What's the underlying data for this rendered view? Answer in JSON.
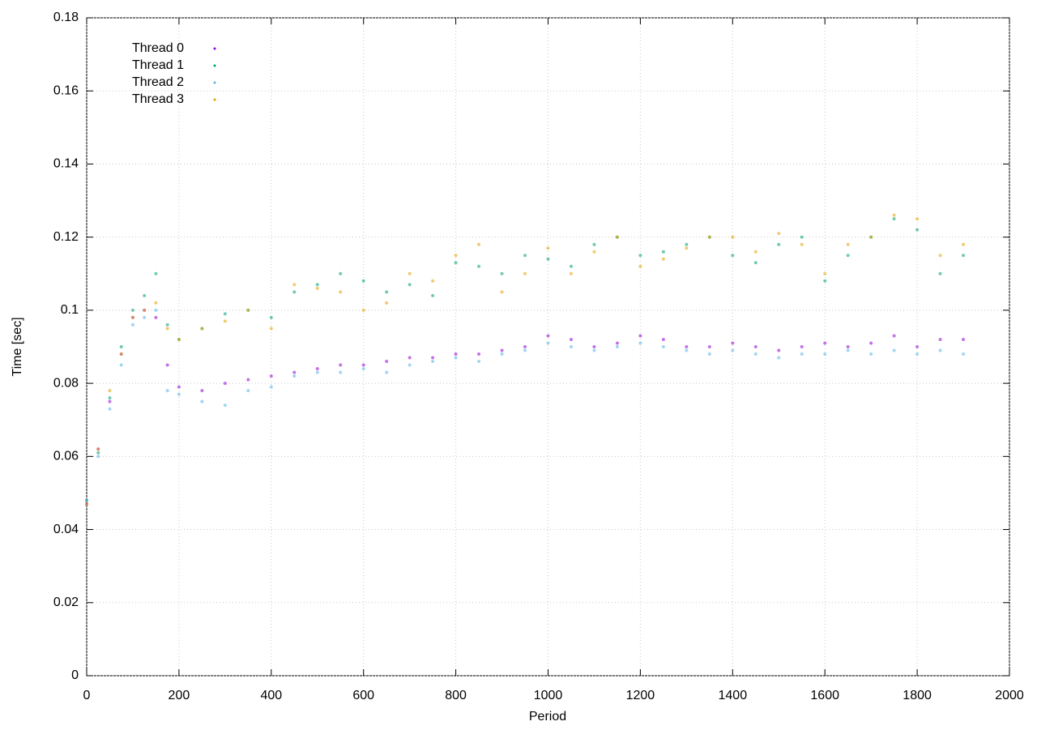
{
  "chart_data": {
    "type": "scatter",
    "xlabel": "Period",
    "ylabel": "Time [sec]",
    "x": [
      0,
      25,
      50,
      75,
      100,
      125,
      150,
      175,
      200,
      250,
      300,
      350,
      400,
      450,
      500,
      550,
      600,
      650,
      700,
      750,
      800,
      850,
      900,
      950,
      1000,
      1050,
      1100,
      1150,
      1200,
      1250,
      1300,
      1350,
      1400,
      1450,
      1500,
      1550,
      1600,
      1650,
      1700,
      1750,
      1800,
      1850,
      1900
    ],
    "series": [
      {
        "name": "Thread 0",
        "color": "#9400d3",
        "values": [
          0.047,
          0.062,
          0.075,
          0.088,
          0.098,
          0.1,
          0.098,
          0.085,
          0.079,
          0.078,
          0.08,
          0.081,
          0.082,
          0.083,
          0.084,
          0.085,
          0.085,
          0.086,
          0.087,
          0.087,
          0.088,
          0.088,
          0.089,
          0.09,
          0.093,
          0.092,
          0.09,
          0.091,
          0.093,
          0.092,
          0.09,
          0.09,
          0.091,
          0.09,
          0.089,
          0.09,
          0.091,
          0.09,
          0.091,
          0.093,
          0.09,
          0.092,
          0.092
        ]
      },
      {
        "name": "Thread 1",
        "color": "#009e73",
        "values": [
          0.048,
          0.061,
          0.076,
          0.09,
          0.1,
          0.104,
          0.11,
          0.096,
          0.092,
          0.095,
          0.099,
          0.1,
          0.098,
          0.105,
          0.107,
          0.11,
          0.108,
          0.105,
          0.107,
          0.104,
          0.113,
          0.112,
          0.11,
          0.115,
          0.114,
          0.112,
          0.118,
          0.12,
          0.115,
          0.116,
          0.118,
          0.12,
          0.115,
          0.113,
          0.118,
          0.12,
          0.108,
          0.115,
          0.12,
          0.125,
          0.122,
          0.11,
          0.115
        ]
      },
      {
        "name": "Thread 2",
        "color": "#56b4e9",
        "values": [
          0.048,
          0.06,
          0.073,
          0.085,
          0.096,
          0.098,
          0.1,
          0.078,
          0.077,
          0.075,
          0.074,
          0.078,
          0.079,
          0.082,
          0.083,
          0.083,
          0.084,
          0.083,
          0.085,
          0.086,
          0.087,
          0.086,
          0.088,
          0.089,
          0.091,
          0.09,
          0.089,
          0.09,
          0.091,
          0.09,
          0.089,
          0.088,
          0.089,
          0.088,
          0.087,
          0.088,
          0.088,
          0.089,
          0.088,
          0.089,
          0.088,
          0.089,
          0.088
        ]
      },
      {
        "name": "Thread 3",
        "color": "#e69f00",
        "values": [
          0.047,
          0.062,
          0.078,
          0.088,
          0.098,
          0.1,
          0.102,
          0.095,
          0.092,
          0.095,
          0.097,
          0.1,
          0.095,
          0.107,
          0.106,
          0.105,
          0.1,
          0.102,
          0.11,
          0.108,
          0.115,
          0.118,
          0.105,
          0.11,
          0.117,
          0.11,
          0.116,
          0.12,
          0.112,
          0.114,
          0.117,
          0.12,
          0.12,
          0.116,
          0.121,
          0.118,
          0.11,
          0.118,
          0.12,
          0.126,
          0.125,
          0.115,
          0.118
        ]
      }
    ],
    "xlim": [
      0,
      2000
    ],
    "xticks": [
      0,
      200,
      400,
      600,
      800,
      1000,
      1200,
      1400,
      1600,
      1800,
      2000
    ],
    "ylim": [
      0,
      0.18
    ],
    "yticks": [
      0,
      0.02,
      0.04,
      0.06,
      0.08,
      0.1,
      0.12,
      0.14,
      0.16,
      0.18
    ],
    "grid": true,
    "legend": "top-left"
  }
}
